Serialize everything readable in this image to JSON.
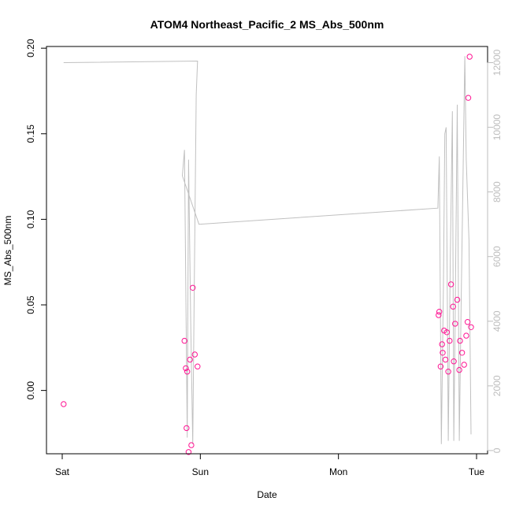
{
  "chart_data": {
    "type": "scatter",
    "title": "ATOM4 Northeast_Pacific_2 MS_Abs_500nm",
    "xlabel": "Date",
    "ylabel": "MS_Abs_500nm",
    "x_ticks": [
      "Sat",
      "Sun",
      "Mon",
      "Tue"
    ],
    "x_range_days": [
      0,
      3
    ],
    "ylim": [
      -0.037,
      0.201
    ],
    "y_ticks": [
      "0.00",
      "0.05",
      "0.10",
      "0.15",
      "0.20"
    ],
    "y_tick_values": [
      0.0,
      0.05,
      0.1,
      0.15,
      0.2
    ],
    "y2lim": [
      -100,
      12500
    ],
    "y2_ticks": [
      "0",
      "2000",
      "4000",
      "6000",
      "8000",
      "10000",
      "12000"
    ],
    "y2_tick_values": [
      0,
      2000,
      4000,
      6000,
      8000,
      10000,
      12000
    ],
    "grid": false,
    "colors": {
      "points": "#ff1493",
      "line": "#c0c0c0",
      "right_axis": "#bdbdbd"
    },
    "series": [
      {
        "axis": "left",
        "marker": "circle",
        "points": [
          [
            0.01,
            -0.008
          ],
          [
            0.885,
            0.029
          ],
          [
            0.895,
            0.013
          ],
          [
            0.9,
            -0.022
          ],
          [
            0.905,
            0.011
          ],
          [
            0.915,
            -0.036
          ],
          [
            0.925,
            0.018
          ],
          [
            0.935,
            -0.032
          ],
          [
            0.945,
            0.06
          ],
          [
            0.96,
            0.021
          ],
          [
            0.98,
            0.014
          ],
          [
            2.725,
            0.044
          ],
          [
            2.73,
            0.046
          ],
          [
            2.74,
            0.014
          ],
          [
            2.75,
            0.027
          ],
          [
            2.755,
            0.022
          ],
          [
            2.765,
            0.035
          ],
          [
            2.775,
            0.018
          ],
          [
            2.785,
            0.034
          ],
          [
            2.795,
            0.011
          ],
          [
            2.805,
            0.029
          ],
          [
            2.815,
            0.062
          ],
          [
            2.83,
            0.049
          ],
          [
            2.835,
            0.017
          ],
          [
            2.845,
            0.039
          ],
          [
            2.86,
            0.053
          ],
          [
            2.875,
            0.012
          ],
          [
            2.88,
            0.029
          ],
          [
            2.895,
            0.022
          ],
          [
            2.91,
            0.015
          ],
          [
            2.925,
            0.032
          ],
          [
            2.935,
            0.04
          ],
          [
            2.94,
            0.171
          ],
          [
            2.95,
            0.195
          ],
          [
            2.96,
            0.037
          ]
        ]
      },
      {
        "axis": "right",
        "marker": "line",
        "points": [
          [
            0.01,
            12000
          ],
          [
            0.98,
            12050
          ],
          [
            0.97,
            11000
          ],
          [
            0.955,
            4500
          ],
          [
            0.945,
            200
          ],
          [
            0.93,
            4000
          ],
          [
            0.915,
            9000
          ],
          [
            0.905,
            400
          ],
          [
            0.895,
            5000
          ],
          [
            0.885,
            9300
          ],
          [
            0.87,
            8500
          ],
          [
            0.99,
            7000
          ],
          [
            2.72,
            7500
          ],
          [
            2.73,
            9100
          ],
          [
            2.745,
            200
          ],
          [
            2.76,
            5000
          ],
          [
            2.77,
            9800
          ],
          [
            2.78,
            10000
          ],
          [
            2.795,
            300
          ],
          [
            2.81,
            6000
          ],
          [
            2.825,
            10500
          ],
          [
            2.835,
            300
          ],
          [
            2.845,
            4000
          ],
          [
            2.86,
            10700
          ],
          [
            2.875,
            300
          ],
          [
            2.89,
            5000
          ],
          [
            2.915,
            12200
          ],
          [
            2.925,
            9000
          ],
          [
            2.945,
            6500
          ],
          [
            2.96,
            500
          ]
        ]
      }
    ]
  }
}
